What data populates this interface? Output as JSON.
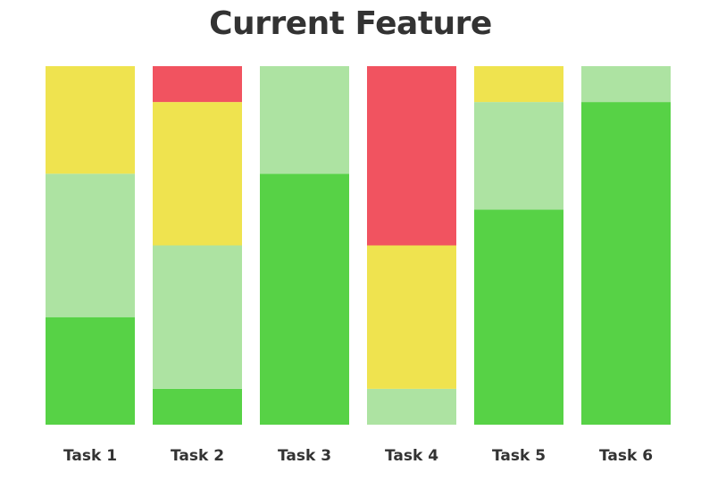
{
  "chart_data": {
    "type": "bar",
    "stacked": true,
    "title": "Current Feature",
    "xlabel": "",
    "ylabel": "",
    "ylim": [
      0,
      10
    ],
    "grid": false,
    "legend": "none",
    "categories": [
      "Task 1",
      "Task 2",
      "Task 3",
      "Task 4",
      "Task 5",
      "Task 6"
    ],
    "series": [
      {
        "color": "#57d246",
        "values": [
          3,
          1,
          7,
          0,
          6,
          9
        ]
      },
      {
        "color": "#ade3a2",
        "values": [
          4,
          4,
          3,
          1,
          3,
          1
        ]
      },
      {
        "color": "#efe34f",
        "values": [
          3,
          4,
          0,
          4,
          1,
          0
        ]
      },
      {
        "color": "#f15360",
        "values": [
          0,
          1,
          0,
          5,
          0,
          0
        ]
      }
    ]
  }
}
